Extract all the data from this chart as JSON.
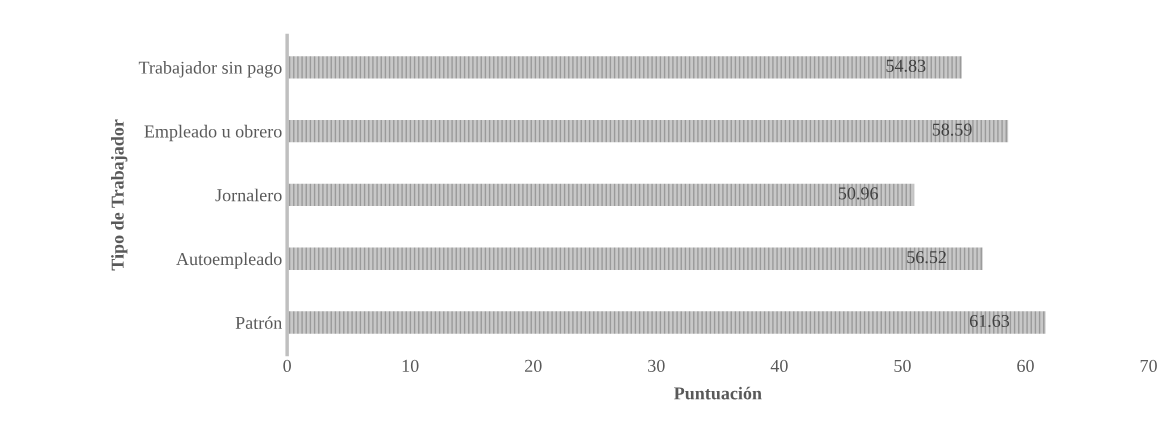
{
  "chart_data": {
    "type": "bar",
    "orientation": "horizontal",
    "xlabel": "Puntuación",
    "ylabel": "Tipo de Trabajador",
    "categories": [
      "Trabajador sin pago",
      "Empleado u obrero",
      "Jornalero",
      "Autoempleado",
      "Patrón"
    ],
    "values": [
      54.83,
      58.59,
      50.96,
      56.52,
      61.63
    ],
    "color": "#c8c8c8",
    "xlim": [
      0,
      70
    ],
    "xticks": [
      0,
      10,
      20,
      30,
      40,
      50,
      60,
      70
    ],
    "data_labels": true,
    "grid": false,
    "legend": false
  }
}
